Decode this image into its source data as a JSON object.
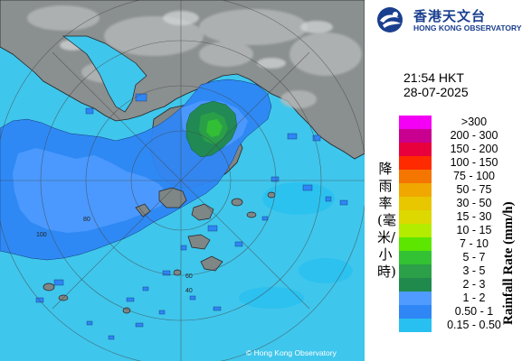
{
  "observatory": {
    "name_cn": "香港天文台",
    "name_en": "HONG KONG OBSERVATORY"
  },
  "timestamp": {
    "time": "21:54 HKT",
    "date": "28-07-2025"
  },
  "legend": {
    "label_cn": "降雨率(毫米/小時)",
    "label_en": "Rainfall Rate (mm/h)",
    "classes": [
      {
        "range": ">300",
        "color": "#f400f4"
      },
      {
        "range": "200 - 300",
        "color": "#c9008f"
      },
      {
        "range": "150 - 200",
        "color": "#e8003c"
      },
      {
        "range": "100 - 150",
        "color": "#ff2a00"
      },
      {
        "range": "75 - 100",
        "color": "#f47600"
      },
      {
        "range": "50 - 75",
        "color": "#f0a800"
      },
      {
        "range": "30 - 50",
        "color": "#e8c600"
      },
      {
        "range": "15 - 30",
        "color": "#dcd800"
      },
      {
        "range": "10 - 15",
        "color": "#b4ec00"
      },
      {
        "range": "7 - 10",
        "color": "#5ce600"
      },
      {
        "range": "5 - 7",
        "color": "#33c233"
      },
      {
        "range": "3 - 5",
        "color": "#2ba048"
      },
      {
        "range": "2 - 3",
        "color": "#1f8a4c"
      },
      {
        "range": "1 - 2",
        "color": "#4f9bff"
      },
      {
        "range": "0.50 - 1",
        "color": "#2f86f5"
      },
      {
        "range": "0.15 - 0.50",
        "color": "#28c0f0"
      }
    ]
  },
  "map": {
    "copyright": "© Hong Kong Observatory",
    "range_ring_labels": [
      "40",
      "60",
      "80",
      "100"
    ],
    "colors": {
      "sea": "#3fc6ec",
      "land": "#8a8f8f",
      "rain_light": "#2f86f5",
      "rain_moderate": "#4f9bff",
      "rain_heavy": "#1f8a4c"
    }
  }
}
